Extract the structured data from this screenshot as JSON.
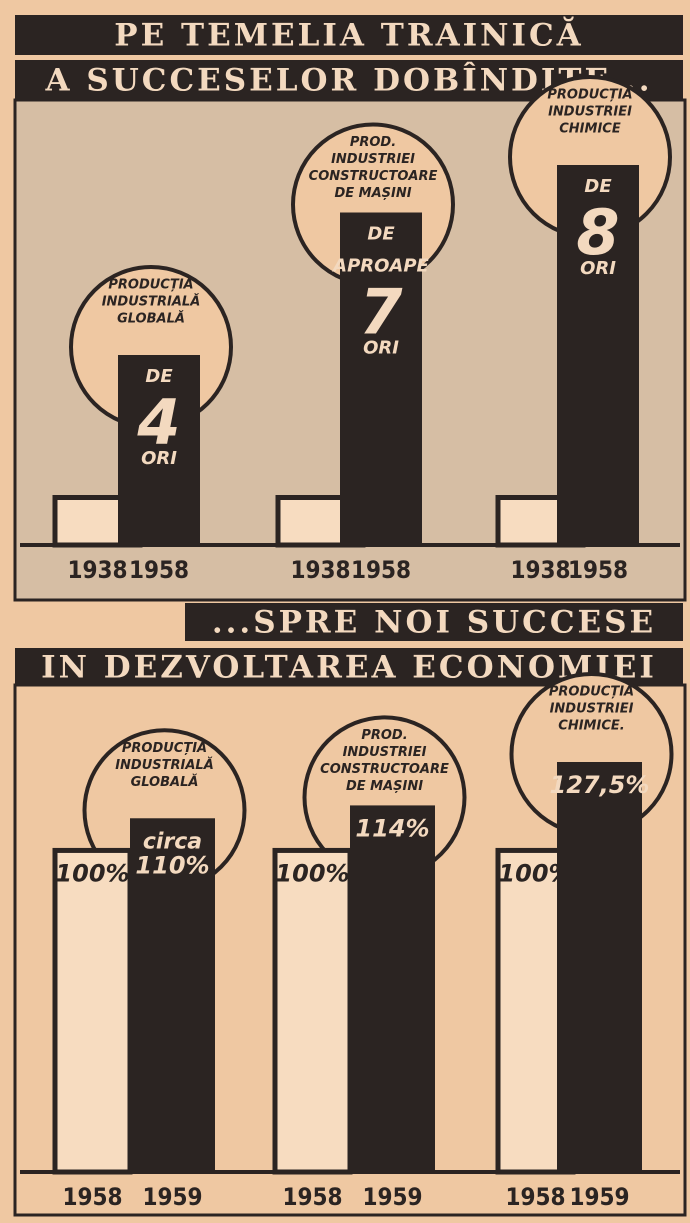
{
  "chart_data": [
    {
      "type": "bar",
      "title": "PE TEMELIA TRAINICĂ",
      "subtitle": "A SUCCESELOR DOBÎNDITE...",
      "color": "#2b2422",
      "panels": [
        {
          "name": [
            "PRODUCȚIA",
            "INDUSTRIALĂ",
            "GLOBALĂ"
          ],
          "categories": [
            "1938",
            "1958"
          ],
          "values": [
            1,
            4
          ],
          "value_labels": [
            null,
            "DE 4 ORI"
          ]
        },
        {
          "name": [
            "PROD.",
            "INDUSTRIEI",
            "CONSTRUCTOARE",
            "DE MAȘINI"
          ],
          "categories": [
            "1938",
            "1958"
          ],
          "values": [
            1,
            7
          ],
          "value_labels": [
            null,
            "DE APROAPE 7 ORI"
          ]
        },
        {
          "name": [
            "PRODUCȚIA",
            "INDUSTRIEI",
            "CHIMICE"
          ],
          "categories": [
            "1938",
            "1958"
          ],
          "values": [
            1,
            8
          ],
          "value_labels": [
            null,
            "DE 8 ORI"
          ]
        }
      ]
    },
    {
      "type": "bar",
      "title": "...SPRE NOI SUCCESE",
      "subtitle": "IN DEZVOLTAREA ECONOMIEI",
      "color": "#2b2422",
      "panels": [
        {
          "name": [
            "PRODUCȚIA",
            "INDUSTRIALĂ",
            "GLOBALĂ"
          ],
          "categories": [
            "1958",
            "1959"
          ],
          "values": [
            100,
            110
          ],
          "value_labels": [
            "100%",
            "circa 110%"
          ]
        },
        {
          "name": [
            "PROD.",
            "INDUSTRIEI",
            "CONSTRUCTOARE",
            "DE MAȘINI"
          ],
          "categories": [
            "1958",
            "1959"
          ],
          "values": [
            100,
            114
          ],
          "value_labels": [
            "100%",
            "114%"
          ]
        },
        {
          "name": [
            "PRODUCȚIA",
            "INDUSTRIEI",
            "CHIMICE."
          ],
          "categories": [
            "1958",
            "1959"
          ],
          "values": [
            100,
            127.5
          ],
          "value_labels": [
            "100%",
            "127,5%"
          ]
        }
      ]
    }
  ]
}
